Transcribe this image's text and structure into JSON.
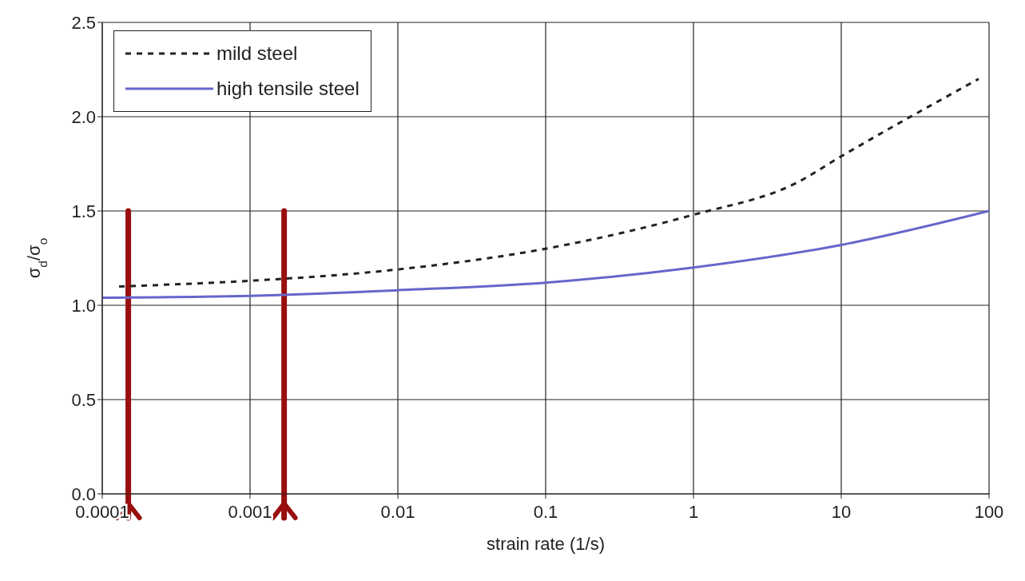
{
  "chart_data": {
    "type": "line",
    "xlabel": "strain rate (1/s)",
    "ylabel": "σ$_{d}$/σ$_{o}$",
    "log": "x",
    "xlim": [
      0.0001,
      100
    ],
    "xticks": [
      0.0001,
      0.001,
      0.01,
      0.1,
      1,
      10,
      100
    ],
    "ylim": [
      0,
      2.5
    ],
    "yticks": [
      {
        "value": 0,
        "label": "0.0"
      },
      {
        "value": 0.5,
        "label": "0.5"
      },
      {
        "value": 1,
        "label": "1.0"
      },
      {
        "value": 1.5,
        "label": "1.5"
      },
      {
        "value": 2,
        "label": "2.0"
      },
      {
        "value": 2.5,
        "label": "2.5"
      }
    ],
    "grid": true,
    "ref_lines": [
      {
        "axis": "x",
        "value": 0.00015,
        "color": "#990f0f"
      },
      {
        "axis": "x",
        "value": 0.0017,
        "color": "#990f0f"
      }
    ],
    "legend": "top left",
    "marker": "none",
    "series": [
      {
        "name": "mild steel",
        "color": "#222222",
        "line_style": "dashed",
        "x": [
          0.00013,
          0.001,
          0.01,
          0.1,
          1,
          5,
          10,
          85
        ],
        "values": [
          1.1,
          1.13,
          1.19,
          1.3,
          1.48,
          1.65,
          1.79,
          2.2
        ]
      },
      {
        "name": "high tensile steel",
        "color": "#6666cc",
        "line_style": "solid",
        "x": [
          0.0001,
          0.001,
          0.01,
          0.1,
          1,
          10,
          100
        ],
        "values": [
          1.04,
          1.05,
          1.08,
          1.12,
          1.2,
          1.32,
          1.5
        ]
      }
    ]
  }
}
